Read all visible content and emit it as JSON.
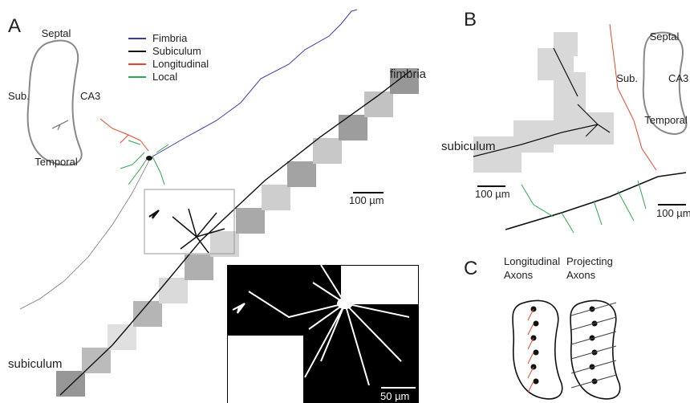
{
  "panel_a": {
    "label": "A",
    "schematic": {
      "top": "Septal",
      "left": "Sub.",
      "right": "CA3",
      "bottom": "Temporal"
    },
    "legend": [
      {
        "name": "Fimbria",
        "color": "#3b3ba8"
      },
      {
        "name": "Subiculum",
        "color": "#111111"
      },
      {
        "name": "Longitudinal",
        "color": "#e8452a"
      },
      {
        "name": "Local",
        "color": "#2ca84a"
      }
    ],
    "labels": {
      "fimbria": "fimbria",
      "subiculum": "subiculum"
    },
    "scale_bar": "100 µm",
    "inset_scale_bar": "50 µm"
  },
  "panel_b": {
    "label": "B",
    "schematic": {
      "top": "Septal",
      "left": "Sub.",
      "right": "CA3",
      "bottom": "Temporal"
    },
    "labels": {
      "subiculum": "subiculum"
    },
    "scale_bar_left": "100 µm",
    "scale_bar_right": "100 µm"
  },
  "panel_c": {
    "label": "C",
    "left_title": [
      "Longitudinal",
      "Axons"
    ],
    "right_title": [
      "Projecting",
      "Axons"
    ]
  }
}
